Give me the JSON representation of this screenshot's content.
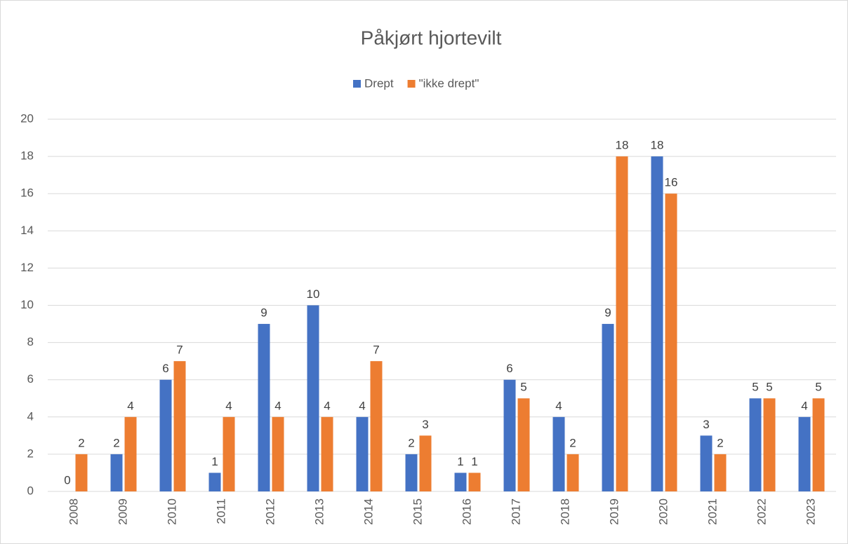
{
  "chart_data": {
    "type": "bar",
    "title": "Påkjørt hjortevilt",
    "categories": [
      "2008",
      "2009",
      "2010",
      "2011",
      "2012",
      "2013",
      "2014",
      "2015",
      "2016",
      "2017",
      "2018",
      "2019",
      "2020",
      "2021",
      "2022",
      "2023"
    ],
    "series": [
      {
        "name": "Drept",
        "color": "#4472c4",
        "values": [
          0,
          2,
          6,
          1,
          9,
          10,
          4,
          2,
          1,
          6,
          4,
          9,
          18,
          3,
          5,
          4
        ]
      },
      {
        "name": "\"ikke drept\"",
        "color": "#ed7d31",
        "values": [
          2,
          4,
          7,
          4,
          4,
          4,
          7,
          3,
          1,
          5,
          2,
          18,
          16,
          2,
          5,
          5
        ]
      }
    ],
    "ylim": [
      0,
      20
    ],
    "yticks": [
      0,
      2,
      4,
      6,
      8,
      10,
      12,
      14,
      16,
      18,
      20
    ],
    "grid": true,
    "legend": "top"
  }
}
